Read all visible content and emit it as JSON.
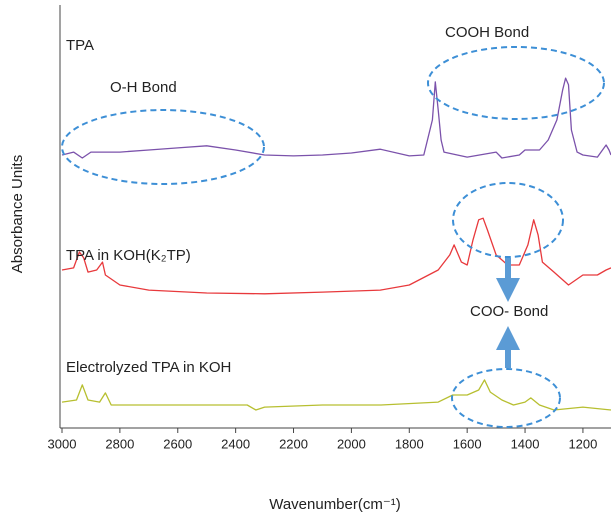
{
  "chart_data": {
    "type": "line",
    "xlabel": "Wavenumber(cm⁻¹)",
    "ylabel": "Absorbance Units",
    "xlim": [
      3000,
      1103
    ],
    "xticks": [
      3000,
      2800,
      2600,
      2400,
      2200,
      2000,
      1800,
      1600,
      1400,
      1200
    ],
    "ylim": [
      0,
      100
    ],
    "annotations": [
      "O-H Bond",
      "COOH Bond",
      "COO- Bond"
    ],
    "series": [
      {
        "name": "TPA",
        "color": "#7b52ab",
        "x": [
          3000,
          2960,
          2930,
          2900,
          2800,
          2700,
          2600,
          2500,
          2400,
          2300,
          2200,
          2100,
          2000,
          1900,
          1800,
          1750,
          1720,
          1710,
          1700,
          1690,
          1680,
          1600,
          1500,
          1480,
          1420,
          1400,
          1350,
          1320,
          1290,
          1270,
          1260,
          1250,
          1240,
          1220,
          1200,
          1150,
          1120,
          1110,
          1103
        ],
        "values": [
          65.3,
          66.0,
          64.6,
          66.0,
          66.0,
          66.5,
          67.0,
          67.5,
          66.5,
          65.3,
          65.1,
          65.3,
          65.8,
          66.7,
          65.1,
          65.3,
          73.7,
          82.8,
          76.1,
          68.9,
          66.0,
          64.8,
          66.0,
          64.6,
          65.3,
          66.5,
          66.5,
          68.9,
          73.7,
          80.9,
          83.7,
          82.1,
          71.3,
          66.0,
          65.3,
          64.8,
          67.7,
          66.5,
          65.3
        ]
      },
      {
        "name": "TPA in KOH(K₂TP)",
        "color": "#e8393c",
        "x": [
          3000,
          2960,
          2940,
          2925,
          2910,
          2880,
          2860,
          2850,
          2800,
          2700,
          2500,
          2300,
          2100,
          1900,
          1800,
          1700,
          1660,
          1645,
          1620,
          1600,
          1580,
          1560,
          1545,
          1530,
          1500,
          1460,
          1420,
          1390,
          1370,
          1355,
          1340,
          1300,
          1250,
          1200,
          1150,
          1120,
          1103
        ],
        "values": [
          37.8,
          38.3,
          42.1,
          40.7,
          37.3,
          37.8,
          39.7,
          36.6,
          34.2,
          33.0,
          32.3,
          32.1,
          32.5,
          33.0,
          34.2,
          37.8,
          41.4,
          43.8,
          39.7,
          39.0,
          45.0,
          49.8,
          50.2,
          47.4,
          41.4,
          39.0,
          39.0,
          43.8,
          49.8,
          46.2,
          39.7,
          37.3,
          34.2,
          36.6,
          36.6,
          37.8,
          38.3
        ]
      },
      {
        "name": "Electrolyzed TPA in KOH",
        "color": "#b7bf30",
        "x": [
          3000,
          2950,
          2930,
          2910,
          2870,
          2850,
          2830,
          2700,
          2500,
          2360,
          2330,
          2300,
          2100,
          1900,
          1700,
          1650,
          1600,
          1560,
          1540,
          1520,
          1480,
          1440,
          1400,
          1380,
          1350,
          1300,
          1200,
          1103
        ],
        "values": [
          6.2,
          6.7,
          10.3,
          6.7,
          6.2,
          8.4,
          5.5,
          5.5,
          5.5,
          5.5,
          4.3,
          5.0,
          5.5,
          5.5,
          6.2,
          7.9,
          7.9,
          9.1,
          11.5,
          8.6,
          6.7,
          5.5,
          6.2,
          7.2,
          5.5,
          4.3,
          5.0,
          4.3
        ]
      }
    ]
  }
}
